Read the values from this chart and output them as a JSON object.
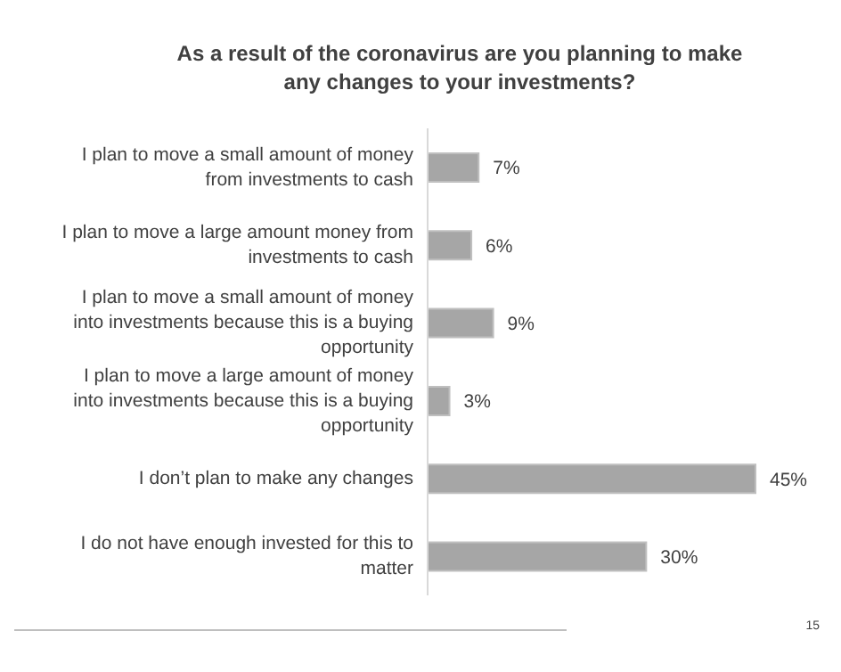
{
  "chart_data": {
    "type": "bar",
    "orientation": "horizontal",
    "title": "As a result of the coronavirus are you planning to make any changes to your investments?",
    "categories": [
      "I plan to move a small amount of money from investments to cash",
      "I plan to move a large amount money from investments to cash",
      "I plan to move a small amount of money into investments because this is a buying opportunity",
      "I plan to move a large amount of money into investments because this is a buying opportunity",
      "I don’t plan to make any changes",
      "I do not have enough invested for this to matter"
    ],
    "values": [
      7,
      6,
      9,
      3,
      45,
      30
    ],
    "value_labels": [
      "7%",
      "6%",
      "9%",
      "3%",
      "45%",
      "30%"
    ],
    "color": "#a6a6a6",
    "annotations": [
      "15"
    ]
  }
}
